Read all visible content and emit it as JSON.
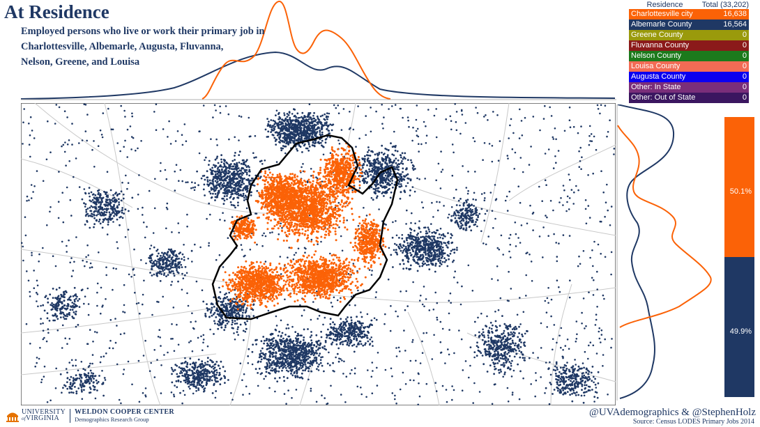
{
  "header": {
    "title": "At Residence",
    "subtitle_lines": [
      "Employed persons who live or work their primary job in",
      "Charlottesville, Albemarle, Augusta, Fluvanna,",
      "Nelson, Greene, and Louisa"
    ]
  },
  "legend": {
    "header_left": "Residence",
    "header_right": "Total (33,202)",
    "rows": [
      {
        "name": "Charlottesville city",
        "value": "16,638",
        "color": "#fb6207"
      },
      {
        "name": "Albemarle County",
        "value": "16,564",
        "color": "#1f3864"
      },
      {
        "name": "Greene County",
        "value": "0",
        "color": "#9a9a0c"
      },
      {
        "name": "Fluvanna County",
        "value": "0",
        "color": "#8b1a1a"
      },
      {
        "name": "Nelson County",
        "value": "0",
        "color": "#1c7a1c"
      },
      {
        "name": "Louisa County",
        "value": "0",
        "color": "#f26b55"
      },
      {
        "name": "Augusta County",
        "value": "0",
        "color": "#0b00f0"
      },
      {
        "name": "Other: In State",
        "value": "0",
        "color": "#7a2e7a"
      },
      {
        "name": "Other: Out of State",
        "value": "0",
        "color": "#3b1660"
      }
    ]
  },
  "share_bar": [
    {
      "label": "50.1%",
      "fraction": 0.501,
      "color": "#fb6207"
    },
    {
      "label": "49.9%",
      "fraction": 0.499,
      "color": "#1f3864"
    }
  ],
  "colors": {
    "city": "#fb6207",
    "county": "#1f3864",
    "boundary": "#000000",
    "roads": "#c8c8c8"
  },
  "footer": {
    "university_line1": "UNIVERSITY",
    "university_line2": "VIRGINIA",
    "university_of": "of",
    "center_name": "WELDON COOPER CENTER",
    "center_group": "Demographics Research Group",
    "handles": "@UVAdemographics & @StephenHolz",
    "source": "Source: Census LODES Primary Jobs 2014"
  },
  "icons": {
    "logo": "uva-rotunda-icon"
  }
}
